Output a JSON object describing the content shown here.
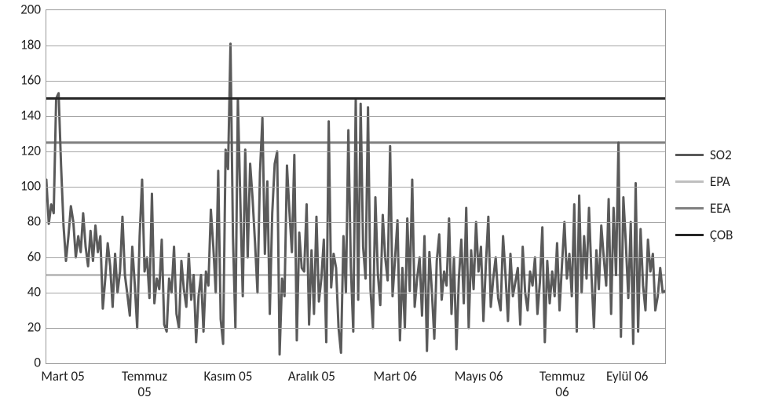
{
  "chart": {
    "type": "line",
    "background_color": "#ffffff",
    "grid_color": "#a6a6a6",
    "axis_color": "#999999",
    "label_fontsize": 17,
    "label_color": "#222222",
    "ylim": [
      0,
      200
    ],
    "ytick_step": 20,
    "yticks": [
      0,
      20,
      40,
      60,
      80,
      100,
      120,
      140,
      160,
      180,
      200
    ],
    "x_categories": [
      "Mart 05",
      "Temmuz\n05",
      "Kasım 05",
      "Aralık 05",
      "Mart 06",
      "Mayıs 06",
      "Temmuz\n06",
      "Eylül 06"
    ],
    "x_category_positions": [
      0.028,
      0.16,
      0.295,
      0.43,
      0.565,
      0.7,
      0.835,
      0.94
    ],
    "series": [
      {
        "name": "SO2",
        "color": "#5a5a5a",
        "line_width": 3,
        "points": [
          104,
          79,
          90,
          85,
          150,
          153,
          112,
          78,
          58,
          72,
          89,
          80,
          60,
          72,
          63,
          85,
          66,
          55,
          75,
          58,
          78,
          63,
          72,
          31,
          48,
          68,
          55,
          32,
          62,
          40,
          52,
          83,
          50,
          39,
          27,
          66,
          45,
          20,
          72,
          104,
          52,
          60,
          37,
          96,
          34,
          48,
          42,
          70,
          22,
          18,
          48,
          40,
          66,
          28,
          20,
          58,
          42,
          32,
          62,
          36,
          50,
          12,
          38,
          50,
          18,
          52,
          44,
          87,
          66,
          40,
          109,
          25,
          11,
          121,
          110,
          181,
          72,
          20,
          150,
          92,
          38,
          121,
          60,
          113,
          93,
          68,
          40,
          108,
          139,
          62,
          103,
          28,
          85,
          113,
          120,
          5,
          48,
          38,
          112,
          86,
          63,
          118,
          13,
          74,
          54,
          52,
          90,
          22,
          64,
          28,
          83,
          35,
          48,
          70,
          12,
          137,
          43,
          62,
          54,
          20,
          6,
          72,
          40,
          132,
          55,
          18,
          150,
          36,
          147,
          66,
          48,
          145,
          42,
          20,
          94,
          51,
          33,
          84,
          60,
          47,
          123,
          38,
          59,
          81,
          13,
          54,
          20,
          82,
          41,
          104,
          32,
          48,
          60,
          27,
          72,
          7,
          63,
          41,
          14,
          58,
          73,
          36,
          52,
          44,
          82,
          28,
          60,
          8,
          48,
          70,
          34,
          88,
          20,
          64,
          42,
          80,
          52,
          66,
          24,
          56,
          83,
          32,
          48,
          60,
          37,
          30,
          72,
          50,
          24,
          62,
          38,
          46,
          54,
          22,
          66,
          40,
          30,
          52,
          44,
          60,
          28,
          46,
          77,
          12,
          58,
          34,
          52,
          38,
          68,
          30,
          56,
          80,
          48,
          62,
          38,
          90,
          18,
          95,
          40,
          72,
          48,
          88,
          50,
          20,
          64,
          42,
          78,
          60,
          44,
          93,
          28,
          88,
          50,
          125,
          15,
          94,
          68,
          37,
          80,
          11,
          102,
          18,
          76,
          44,
          30,
          70,
          52,
          62,
          30,
          38,
          54,
          40,
          41
        ]
      },
      {
        "name": "EPA",
        "color": "#bfbfbf",
        "line_width": 3,
        "constant_value": 50
      },
      {
        "name": "EEA",
        "color": "#808080",
        "line_width": 3,
        "constant_value": 125
      },
      {
        "name": "ÇOB",
        "color": "#262626",
        "line_width": 3,
        "constant_value": 150
      }
    ],
    "legend": {
      "position": "right",
      "items": [
        "SO2",
        "EPA",
        "EEA",
        "ÇOB"
      ]
    }
  }
}
